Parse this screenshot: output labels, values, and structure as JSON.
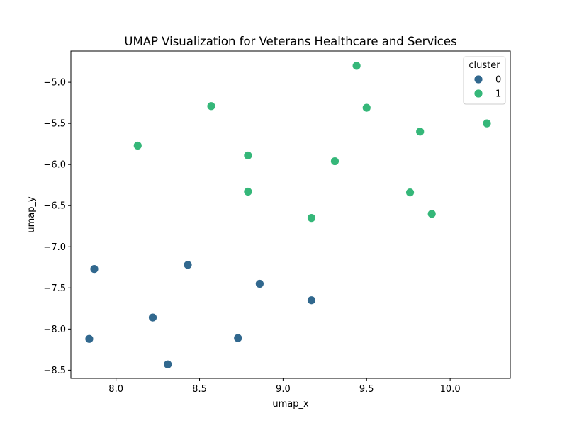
{
  "chart_data": {
    "type": "scatter",
    "title": "UMAP Visualization for Veterans Healthcare and Services",
    "xlabel": "umap_x",
    "ylabel": "umap_y",
    "xlim": [
      7.73,
      10.36
    ],
    "ylim": [
      -8.6,
      -4.62
    ],
    "xticks": [
      8.0,
      8.5,
      9.0,
      9.5,
      10.0
    ],
    "xtick_labels": [
      "8.0",
      "8.5",
      "9.0",
      "9.5",
      "10.0"
    ],
    "yticks": [
      -5.0,
      -5.5,
      -6.0,
      -6.5,
      -7.0,
      -7.5,
      -8.0,
      -8.5
    ],
    "ytick_labels": [
      "−5.0",
      "−5.5",
      "−6.0",
      "−6.5",
      "−7.0",
      "−7.5",
      "−8.0",
      "−8.5"
    ],
    "grid": false,
    "legend": {
      "title": "cluster",
      "placement": "top-right",
      "entries": [
        {
          "label": "0",
          "color": "#31688e"
        },
        {
          "label": "1",
          "color": "#35b779"
        }
      ]
    },
    "series": [
      {
        "name": "0",
        "color": "#31688e",
        "points": [
          {
            "x": 7.87,
            "y": -7.27
          },
          {
            "x": 7.84,
            "y": -8.12
          },
          {
            "x": 8.22,
            "y": -7.86
          },
          {
            "x": 8.31,
            "y": -8.43
          },
          {
            "x": 8.43,
            "y": -7.22
          },
          {
            "x": 8.73,
            "y": -8.11
          },
          {
            "x": 8.86,
            "y": -7.45
          },
          {
            "x": 9.17,
            "y": -7.65
          }
        ]
      },
      {
        "name": "1",
        "color": "#35b779",
        "points": [
          {
            "x": 8.13,
            "y": -5.77
          },
          {
            "x": 8.57,
            "y": -5.29
          },
          {
            "x": 8.79,
            "y": -5.89
          },
          {
            "x": 8.79,
            "y": -6.33
          },
          {
            "x": 9.17,
            "y": -6.65
          },
          {
            "x": 9.31,
            "y": -5.96
          },
          {
            "x": 9.44,
            "y": -4.8
          },
          {
            "x": 9.5,
            "y": -5.31
          },
          {
            "x": 9.76,
            "y": -6.34
          },
          {
            "x": 9.82,
            "y": -5.6
          },
          {
            "x": 9.89,
            "y": -6.6
          },
          {
            "x": 10.22,
            "y": -5.5
          }
        ]
      }
    ]
  }
}
